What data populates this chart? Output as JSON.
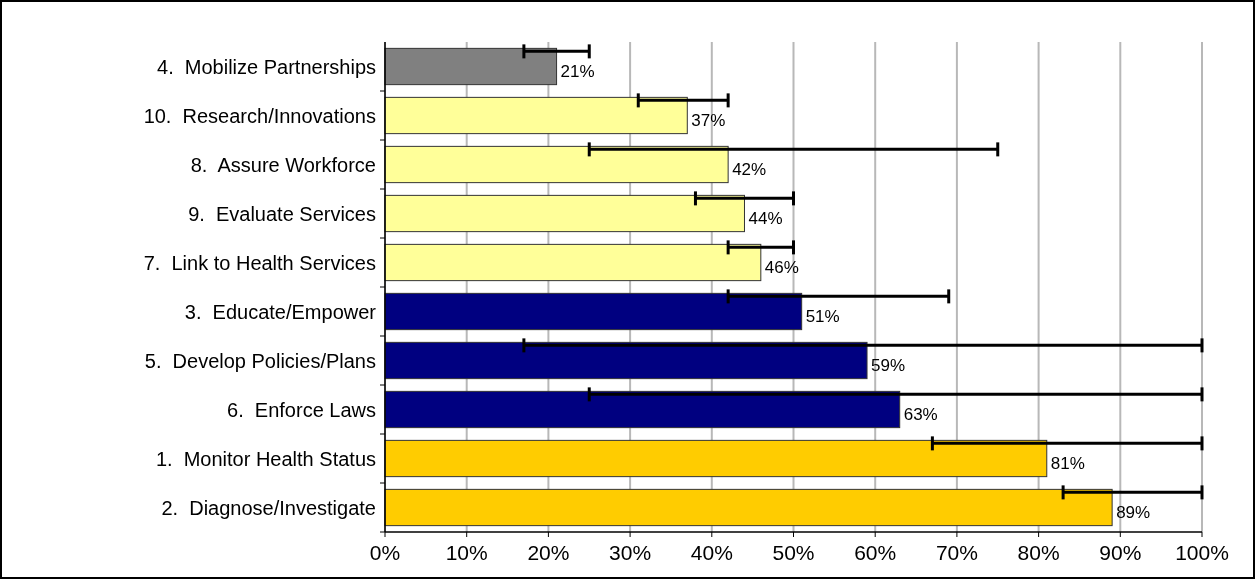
{
  "chart_data": {
    "type": "bar",
    "orientation": "horizontal",
    "categories": [
      "4.  Mobilize Partnerships",
      "10.  Research/Innovations",
      "8.  Assure Workforce",
      "9.  Evaluate Services",
      "7.  Link to Health Services",
      "3.  Educate/Empower",
      "5.  Develop Policies/Plans",
      "6.  Enforce Laws",
      "1.  Monitor Health Status",
      "2.  Diagnose/Investigate"
    ],
    "values": [
      21,
      37,
      42,
      44,
      46,
      51,
      59,
      63,
      81,
      89
    ],
    "colors": [
      "#808080",
      "#ffff99",
      "#ffff99",
      "#ffff99",
      "#ffff99",
      "#000080",
      "#000080",
      "#000080",
      "#ffcc00",
      "#ffcc00"
    ],
    "errors": [
      [
        17,
        25
      ],
      [
        31,
        42
      ],
      [
        25,
        75
      ],
      [
        38,
        50
      ],
      [
        42,
        50
      ],
      [
        42,
        69
      ],
      [
        17,
        100
      ],
      [
        25,
        100
      ],
      [
        67,
        100
      ],
      [
        83,
        100
      ]
    ],
    "value_labels": [
      "21%",
      "37%",
      "42%",
      "44%",
      "46%",
      "51%",
      "59%",
      "63%",
      "81%",
      "89%"
    ],
    "xlim": [
      0,
      100
    ],
    "xticks": [
      {
        "value": 0,
        "label": "0%"
      },
      {
        "value": 10,
        "label": "10%"
      },
      {
        "value": 20,
        "label": "20%"
      },
      {
        "value": 30,
        "label": "30%"
      },
      {
        "value": 40,
        "label": "40%"
      },
      {
        "value": 50,
        "label": "50%"
      },
      {
        "value": 60,
        "label": "60%"
      },
      {
        "value": 70,
        "label": "70%"
      },
      {
        "value": 80,
        "label": "80%"
      },
      {
        "value": 90,
        "label": "90%"
      },
      {
        "value": 100,
        "label": "100%"
      }
    ],
    "grid": "x"
  }
}
